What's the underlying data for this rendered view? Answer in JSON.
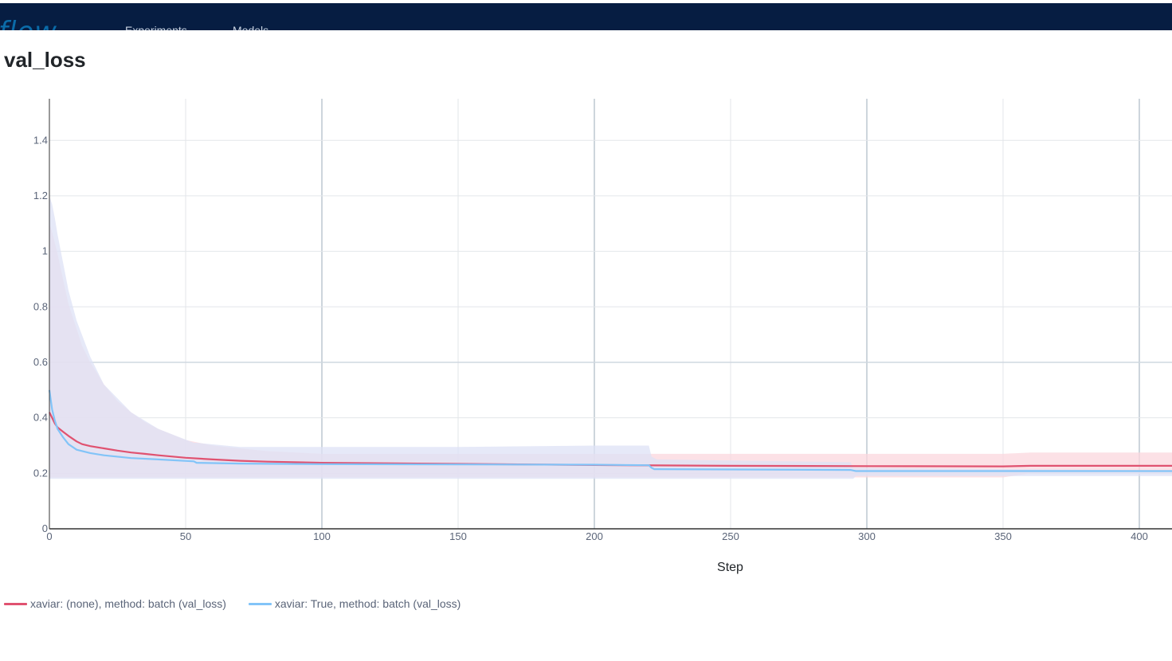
{
  "header": {
    "logo": "flow",
    "nav": [
      "Experiments",
      "Models"
    ]
  },
  "page": {
    "title": "val_loss"
  },
  "chart_data": {
    "type": "line",
    "title": "val_loss",
    "xlabel": "Step",
    "ylabel": "",
    "xlim": [
      0,
      412
    ],
    "ylim": [
      0,
      1.55
    ],
    "xticks": [
      0,
      50,
      100,
      150,
      200,
      250,
      300,
      350,
      400
    ],
    "yticks": [
      0,
      0.2,
      0.4,
      0.6,
      0.8,
      1,
      1.2,
      1.4
    ],
    "ytick_labels": [
      "0",
      "0.2",
      "0.4",
      "0.6",
      "0.8",
      "1",
      "1.2",
      "1.4"
    ],
    "grid": true,
    "legend_position": "bottom-left",
    "series": [
      {
        "name": "xaviar: (none), method: batch (val_loss)",
        "color": "#e05270",
        "band_color": "#fbd7dd",
        "x": [
          0,
          1,
          2,
          3,
          5,
          7,
          10,
          12,
          15,
          20,
          25,
          30,
          35,
          40,
          50,
          60,
          70,
          80,
          100,
          150,
          200,
          250,
          300,
          350,
          360,
          412
        ],
        "y": [
          0.42,
          0.4,
          0.38,
          0.365,
          0.35,
          0.335,
          0.315,
          0.305,
          0.298,
          0.29,
          0.282,
          0.275,
          0.27,
          0.265,
          0.256,
          0.25,
          0.245,
          0.242,
          0.238,
          0.234,
          0.23,
          0.227,
          0.226,
          0.225,
          0.227,
          0.227
        ],
        "upper": [
          1.1,
          1.07,
          1.03,
          0.99,
          0.9,
          0.81,
          0.72,
          0.66,
          0.6,
          0.52,
          0.46,
          0.42,
          0.385,
          0.36,
          0.32,
          0.3,
          0.29,
          0.28,
          0.27,
          0.27,
          0.27,
          0.27,
          0.27,
          0.27,
          0.275,
          0.275
        ],
        "lower": [
          0.185,
          0.185,
          0.185,
          0.185,
          0.185,
          0.185,
          0.185,
          0.185,
          0.185,
          0.185,
          0.185,
          0.185,
          0.185,
          0.185,
          0.185,
          0.185,
          0.185,
          0.185,
          0.185,
          0.185,
          0.185,
          0.185,
          0.185,
          0.185,
          0.2,
          0.2
        ]
      },
      {
        "name": "xaviar: True, method: batch (val_loss)",
        "color": "#82c4f8",
        "band_color": "#dde2f6",
        "x": [
          0,
          1,
          2,
          3,
          5,
          7,
          10,
          15,
          20,
          30,
          40,
          53,
          54,
          70,
          100,
          150,
          200,
          220,
          221,
          222,
          223,
          294,
          295,
          296,
          412
        ],
        "y": [
          0.5,
          0.43,
          0.39,
          0.36,
          0.33,
          0.305,
          0.285,
          0.273,
          0.265,
          0.255,
          0.25,
          0.243,
          0.238,
          0.235,
          0.233,
          0.232,
          0.231,
          0.229,
          0.22,
          0.215,
          0.215,
          0.212,
          0.21,
          0.208,
          0.208
        ],
        "upper": [
          1.2,
          1.17,
          1.12,
          1.06,
          0.96,
          0.86,
          0.75,
          0.62,
          0.52,
          0.42,
          0.36,
          0.31,
          0.31,
          0.295,
          0.295,
          0.295,
          0.3,
          0.3,
          0.26,
          0.255,
          0.25,
          0.24,
          0.22,
          0.22,
          0.21
        ],
        "lower": [
          0.18,
          0.18,
          0.18,
          0.18,
          0.18,
          0.18,
          0.18,
          0.18,
          0.18,
          0.18,
          0.18,
          0.18,
          0.18,
          0.18,
          0.18,
          0.18,
          0.18,
          0.18,
          0.18,
          0.18,
          0.18,
          0.18,
          0.18,
          0.19,
          0.19
        ]
      }
    ]
  }
}
